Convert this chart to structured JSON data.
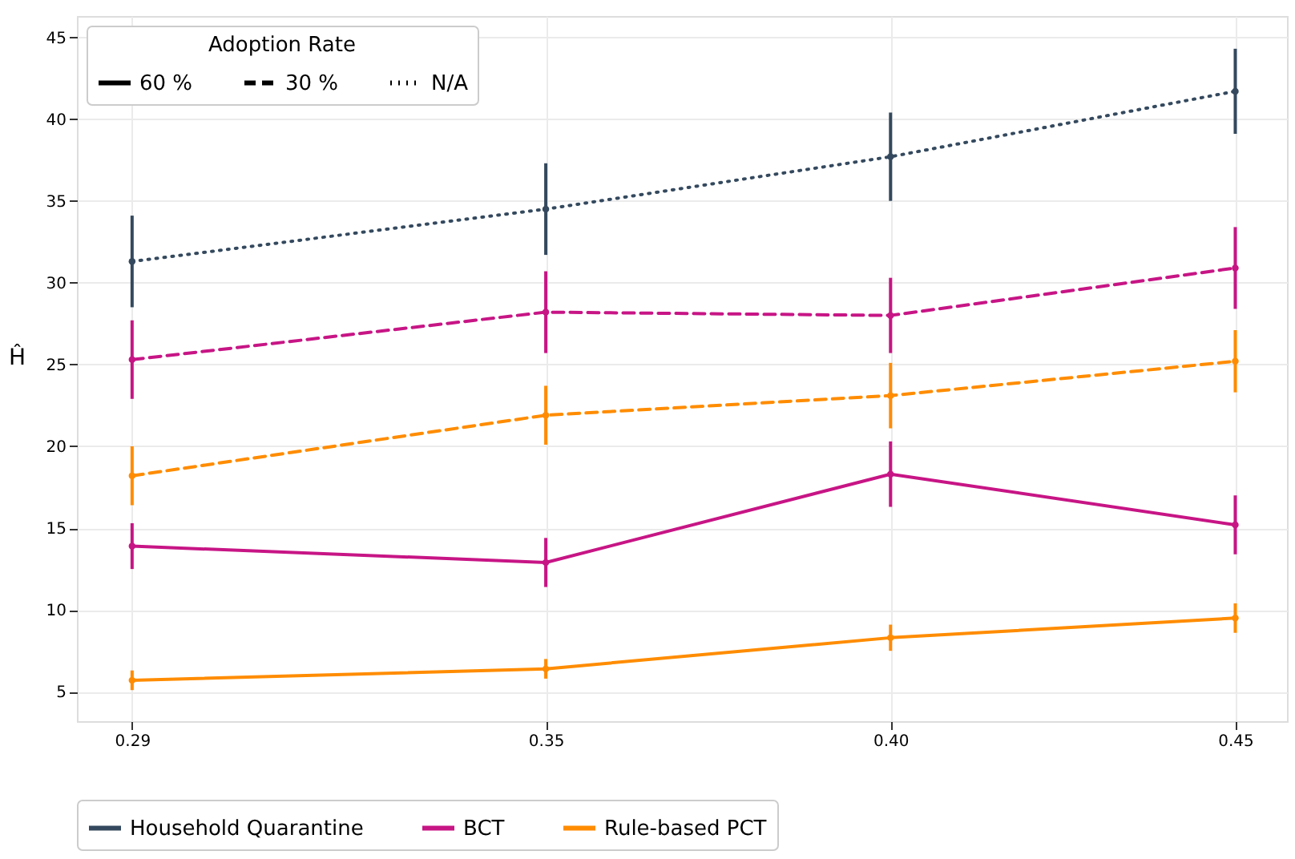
{
  "chart_data": {
    "type": "line",
    "ylabel": "Ĥ",
    "legend_title": "Adoption Rate",
    "x": [
      0.29,
      0.35,
      0.4,
      0.45
    ],
    "xlim": [
      0.282,
      0.4575
    ],
    "xticks": [
      {
        "value": 0.29,
        "label": "0.29"
      },
      {
        "value": 0.35,
        "label": "0.35"
      },
      {
        "value": 0.4,
        "label": "0.40"
      },
      {
        "value": 0.45,
        "label": "0.45"
      }
    ],
    "ylim": [
      3.2,
      46.3
    ],
    "yticks": [
      5,
      10,
      15,
      20,
      25,
      30,
      35,
      40,
      45
    ],
    "grid": true,
    "legend": "bottom",
    "marker": "circle",
    "annotations": [
      "60 %",
      "30 %",
      "N/A"
    ],
    "series": [
      {
        "name": "Household Quarantine",
        "color": "#34495e",
        "line_style": "dotted",
        "values": [
          31.3,
          34.5,
          37.7,
          41.7
        ],
        "errors": [
          2.8,
          2.8,
          2.7,
          2.6
        ]
      },
      {
        "name": "BCT",
        "color": "#c71585",
        "line_style": "solid",
        "values": [
          13.9,
          12.9,
          18.3,
          15.2
        ],
        "errors": [
          1.4,
          1.5,
          2.0,
          1.8
        ]
      },
      {
        "name": "Rule-based PCT",
        "color": "#ff8c00",
        "line_style": "solid",
        "values": [
          5.7,
          6.4,
          8.3,
          9.5
        ],
        "errors": [
          0.6,
          0.6,
          0.8,
          0.9
        ]
      },
      {
        "color": "#c71585",
        "line_style": "dashed",
        "values": [
          25.3,
          28.2,
          28.0,
          30.9
        ],
        "errors": [
          2.4,
          2.5,
          2.3,
          2.5
        ]
      },
      {
        "color": "#ff8c00",
        "line_style": "dashed",
        "values": [
          18.2,
          21.9,
          23.1,
          25.2
        ],
        "errors": [
          1.8,
          1.8,
          2.0,
          1.9
        ]
      }
    ]
  }
}
